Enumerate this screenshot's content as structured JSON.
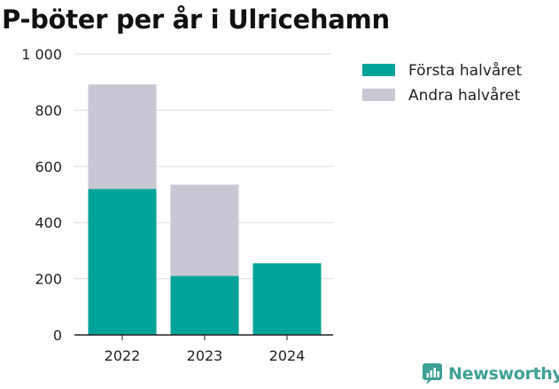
{
  "chart_data": {
    "type": "bar",
    "stacked": true,
    "title": "P-böter per år i Ulricehamn",
    "categories": [
      "2022",
      "2023",
      "2024"
    ],
    "series": [
      {
        "name": "Första halvåret",
        "color": "#00a399",
        "values": [
          520,
          210,
          255
        ]
      },
      {
        "name": "Andra halvåret",
        "color": "#c8c7d3",
        "values": [
          372,
          325,
          null
        ]
      }
    ],
    "yticks": [
      0,
      200,
      400,
      600,
      800,
      1000
    ],
    "ytick_labels": [
      "0",
      "200",
      "400",
      "600",
      "800",
      "1 000"
    ],
    "ylim": [
      0,
      1000
    ],
    "xlabel": "",
    "ylabel": "",
    "grid": true,
    "legend_position": "right"
  },
  "brand": {
    "name": "Newsworthy",
    "color": "#3fa096",
    "icon": "bar-chart-icon"
  }
}
